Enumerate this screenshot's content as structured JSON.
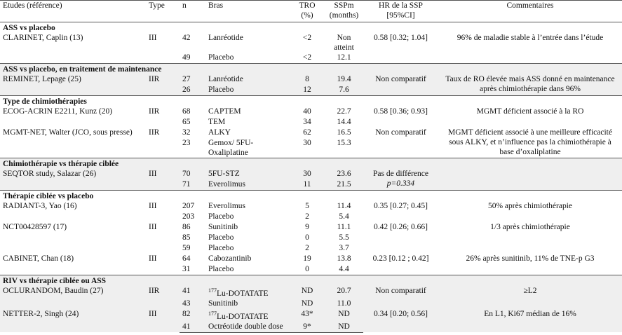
{
  "header": [
    [
      "Etudes (référence)"
    ],
    [
      "Type"
    ],
    [
      "n"
    ],
    [
      "Bras"
    ],
    [
      "TRO",
      "(%)"
    ],
    [
      "SSPm",
      "(months)"
    ],
    [
      "HR de la SSP",
      "[95%CI]"
    ],
    [
      "Commentaires"
    ]
  ],
  "sections": [
    {
      "title": "ASS vs placebo",
      "groups": [
        {
          "study": "CLARINET, Caplin (13)",
          "type": "III",
          "hr": [
            "0.58 [0.32; 1.04]"
          ],
          "comment": "96% de maladie stable à l’entrée dans l’étude",
          "arms": [
            {
              "n": 42,
              "bras": "Lanréotide",
              "tro": "<2",
              "ssp": "Non atteint"
            },
            {
              "n": 49,
              "bras": "Placebo",
              "tro": "<2",
              "ssp": 12.1
            }
          ]
        }
      ]
    },
    {
      "title": "ASS vs placebo, en traitement de maintenance",
      "groups": [
        {
          "study": "REMINET, Lepage (25)",
          "type": "IIR",
          "hr": [
            "Non comparatif"
          ],
          "comment": "Taux de RO élevée mais ASS donné en maintenance après chimiothérapie dans 96%",
          "arms": [
            {
              "n": 27,
              "bras": "Lanréotide",
              "tro": 8,
              "ssp": 19.4
            },
            {
              "n": 26,
              "bras": "Placebo",
              "tro": 12,
              "ssp": 7.6
            }
          ]
        }
      ]
    },
    {
      "title": "Type de chimiothérapies",
      "groups": [
        {
          "study": "ECOG-ACRIN E2211, Kunz (20)",
          "type": "IIR",
          "hr": [
            "0.58 [0.36; 0.93]"
          ],
          "comment": "MGMT déficient associé à la RO",
          "arms": [
            {
              "n": 68,
              "bras": "CAPTEM",
              "tro": 40,
              "ssp": 22.7
            },
            {
              "n": 65,
              "bras": "TEM",
              "tro": 34,
              "ssp": 14.4
            }
          ]
        },
        {
          "study": "MGMT-NET, Walter (JCO, sous presse)",
          "type": "IIR",
          "hr": [
            "Non comparatif"
          ],
          "comment": "MGMT déficient associé à une meilleure efficacité sous ALKY, et n’influence pas la chimiothérapie à base d’oxaliplatine",
          "arms": [
            {
              "n": 32,
              "bras": "ALKY",
              "tro": 62,
              "ssp": 16.5
            },
            {
              "n": 23,
              "bras": "Gemox/ 5FU-Oxaliplatine",
              "tro": 30,
              "ssp": 15.3
            }
          ]
        }
      ]
    },
    {
      "title": "Chimiothérapie vs thérapie ciblée",
      "groups": [
        {
          "study": "SEQTOR study, Salazar (26)",
          "type": "III",
          "hr": [
            "Pas de différence",
            "p=0.334"
          ],
          "arms": [
            {
              "n": 70,
              "bras": "5FU-STZ",
              "tro": 30,
              "ssp": 23.6
            },
            {
              "n": 71,
              "bras": "Everolimus",
              "tro": 11,
              "ssp": 21.5
            }
          ]
        }
      ]
    },
    {
      "title": "Thérapie ciblée vs placebo",
      "groups": [
        {
          "study": "RADIANT-3, Yao (16)",
          "type": "III",
          "hr": [
            "0.35 [0.27; 0.45]"
          ],
          "comment": "50% après chimiothérapie",
          "arms": [
            {
              "n": 207,
              "bras": "Everolimus",
              "tro": 5,
              "ssp": 11.4
            },
            {
              "n": 203,
              "bras": "Placebo",
              "tro": 2,
              "ssp": 5.4
            }
          ]
        },
        {
          "study": "NCT00428597 (17)",
          "type": "III",
          "hr": [
            "0.42 [0.26; 0.66]"
          ],
          "comment": "1/3 après chimiothérapie",
          "arms": [
            {
              "n": 86,
              "bras": "Sunitinib",
              "tro": 9,
              "ssp": 11.1
            },
            {
              "n": 85,
              "bras": "Placebo",
              "tro": 0,
              "ssp": 5.5
            }
          ]
        },
        {
          "arms": [
            {
              "n": 59,
              "bras": "Placebo",
              "tro": 2,
              "ssp": 3.7
            }
          ]
        },
        {
          "study": "CABINET, Chan (18)",
          "type": "III",
          "hr": [
            "0.23 [0.12 ; 0.42]"
          ],
          "comment": "26% après sunitinib, 11% de TNE-p G3",
          "arms": [
            {
              "n": 64,
              "bras": "Cabozantinib",
              "tro": 19,
              "ssp": 13.8
            },
            {
              "n": 31,
              "bras": "Placebo",
              "tro": 0,
              "ssp": 4.4
            }
          ]
        }
      ]
    },
    {
      "title": "RIV vs thérapie ciblée ou ASS",
      "groups": [
        {
          "study": "OCLURANDOM, Baudin (27)",
          "type": "IIR",
          "hr": [
            "Non comparatif"
          ],
          "comment": "≥L2",
          "arms": [
            {
              "n": 41,
              "bras_sup": "177",
              "bras": "Lu-DOTATATE",
              "tro": "ND",
              "ssp": 20.7
            },
            {
              "n": 43,
              "bras": "Sunitinib",
              "tro": "ND",
              "ssp": "11.0"
            }
          ]
        },
        {
          "study": "NETTER-2, Singh (24)",
          "type": "III",
          "hr": [
            "0.34 [0.20; 0.56]"
          ],
          "comment": "En L1, Ki67 médian de 16%",
          "arms": [
            {
              "n": 82,
              "bras_sup": "177",
              "bras": "Lu-DOTATATE",
              "tro": "43*",
              "ssp": "ND"
            },
            {
              "n": 41,
              "bras": "Octréotide double dose",
              "tro": "9*",
              "ssp": "ND"
            }
          ]
        }
      ]
    }
  ]
}
